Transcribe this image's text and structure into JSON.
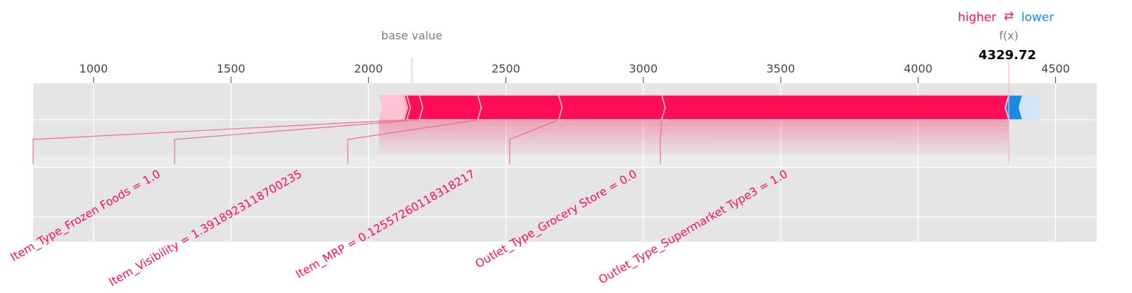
{
  "chart_data": {
    "type": "force_plot",
    "title": "",
    "xlabel": "",
    "ylabel": "",
    "xlim": [
      780,
      4650
    ],
    "xticks": [
      1000,
      1500,
      2000,
      2500,
      3000,
      3500,
      4000,
      4500
    ],
    "tick_labels": [
      "1000",
      "1500",
      "2000",
      "2500",
      "3000",
      "3500",
      "4000",
      "4500"
    ],
    "base_value": 2158,
    "base_value_label": "base value",
    "output_label": "f(x)",
    "output_value": 4329.72,
    "output_value_text": "4329.72",
    "legend": {
      "higher_label": "higher",
      "arrow_symbol": "⇄",
      "lower_label": "lower",
      "placement": "top-right"
    },
    "colors": {
      "positive": "#ff0d57",
      "negative": "#1e88e5",
      "positive_light": "#ffc3d5",
      "negative_light": "#d1e6fa",
      "plot_background": "#e5e5e5",
      "grid": "#ffffff",
      "axis_text": "#444444",
      "muted_text": "#808080"
    },
    "positive_segments": [
      {
        "start": 2038,
        "end": 2080,
        "emphasis": "light"
      },
      {
        "start": 2080,
        "end": 2098,
        "emphasis": "light"
      },
      {
        "start": 2098,
        "end": 2108,
        "emphasis": "light"
      },
      {
        "start": 2108,
        "end": 2115,
        "emphasis": "light"
      },
      {
        "start": 2115,
        "end": 2120,
        "emphasis": "light"
      },
      {
        "start": 2120,
        "end": 2125,
        "emphasis": "light"
      },
      {
        "start": 2125,
        "end": 2130,
        "emphasis": "strong"
      },
      {
        "start": 2130,
        "end": 2140,
        "emphasis": "strong"
      },
      {
        "start": 2140,
        "end": 2185,
        "emphasis": "strong"
      },
      {
        "start": 2185,
        "end": 2398,
        "emphasis": "strong"
      },
      {
        "start": 2398,
        "end": 2692,
        "emphasis": "strong"
      },
      {
        "start": 2692,
        "end": 3067,
        "emphasis": "strong"
      },
      {
        "start": 3067,
        "end": 4329.72,
        "emphasis": "strong"
      }
    ],
    "negative_segments": [
      {
        "start": 4329.72,
        "end": 4380,
        "emphasis": "strong"
      },
      {
        "start": 4380,
        "end": 4393,
        "emphasis": "light"
      },
      {
        "start": 4393,
        "end": 4405,
        "emphasis": "light"
      },
      {
        "start": 4405,
        "end": 4448,
        "emphasis": "light"
      }
    ],
    "features": [
      {
        "label": "Item_Type_Frozen Foods = 1.0",
        "start": 2125,
        "end": 2140
      },
      {
        "label": "Item_Visibility = 1.3918923118700235",
        "start": 2140,
        "end": 2185
      },
      {
        "label": "Item_MRP = 0.12557260118318217",
        "start": 2185,
        "end": 2398
      },
      {
        "label": "Outlet_Type_Grocery Store = 0.0",
        "start": 2398,
        "end": 2692
      },
      {
        "label": "Outlet_Type_Supermarket Type3 = 1.0",
        "start": 2692,
        "end": 3067
      }
    ],
    "grid": true
  }
}
